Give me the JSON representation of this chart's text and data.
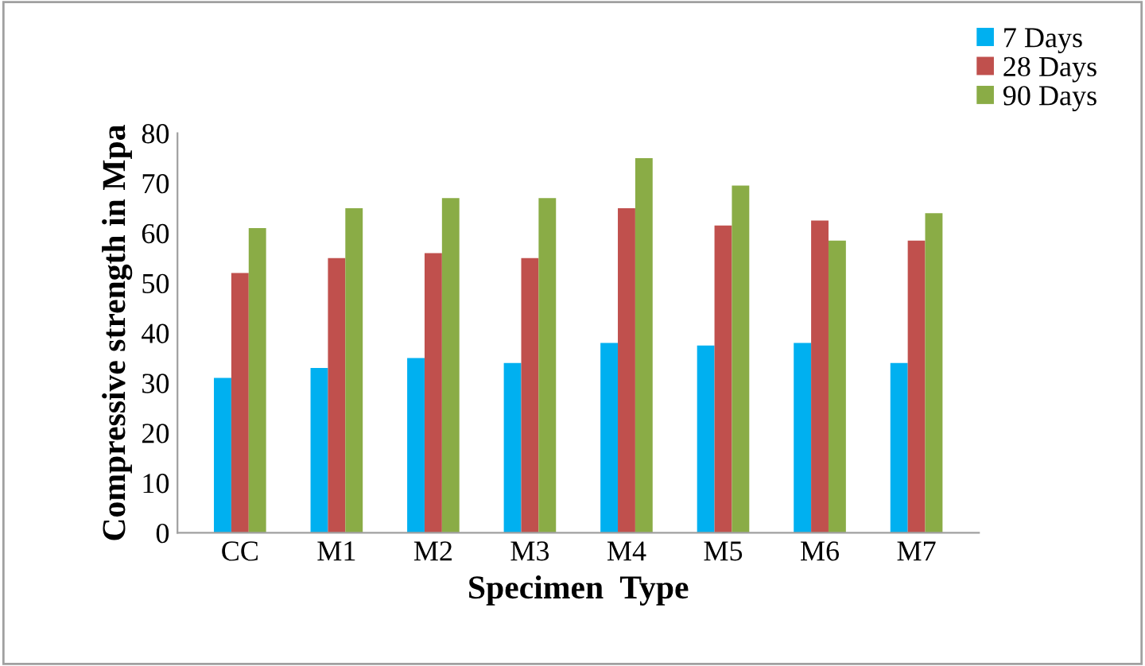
{
  "chart_data": {
    "type": "bar",
    "xlabel": "Specimen  Type",
    "ylabel": "Compressive strength in Mpa",
    "categories": [
      "CC",
      "M1",
      "M2",
      "M3",
      "M4",
      "M5",
      "M6",
      "M7"
    ],
    "series": [
      {
        "name": "7 Days",
        "color": "#00b0f0",
        "values": [
          31,
          33,
          35,
          34,
          38,
          37.5,
          38,
          34
        ]
      },
      {
        "name": "28 Days",
        "color": "#c0504d",
        "values": [
          52,
          55,
          56,
          55,
          65,
          61.5,
          62.5,
          58.5
        ]
      },
      {
        "name": "90 Days",
        "color": "#8aac46",
        "values": [
          61,
          65,
          67,
          67,
          75,
          69.5,
          58.5,
          64
        ]
      }
    ],
    "ylim": [
      0,
      80
    ],
    "yticks": [
      0,
      10,
      20,
      30,
      40,
      50,
      60,
      70,
      80
    ],
    "grid": false,
    "legend": "top right"
  }
}
